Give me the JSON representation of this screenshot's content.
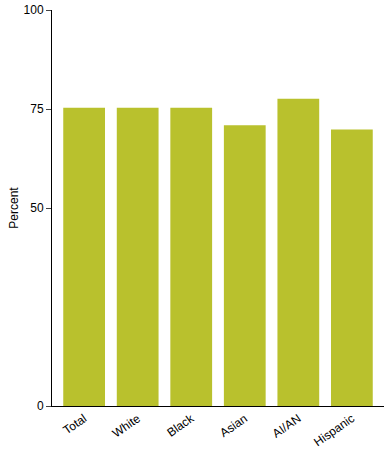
{
  "chart_data": {
    "type": "bar",
    "y_label": "Percent",
    "categories": [
      "Total",
      "White",
      "Black",
      "Asian",
      "AI/AN",
      "Hispanic"
    ],
    "values": [
      75.3,
      75.3,
      75.3,
      70.9,
      77.6,
      69.8
    ],
    "color": "#b9c12d",
    "ylim": [
      0,
      100
    ],
    "yticks": [
      0,
      50,
      75,
      100
    ],
    "grid": false
  }
}
